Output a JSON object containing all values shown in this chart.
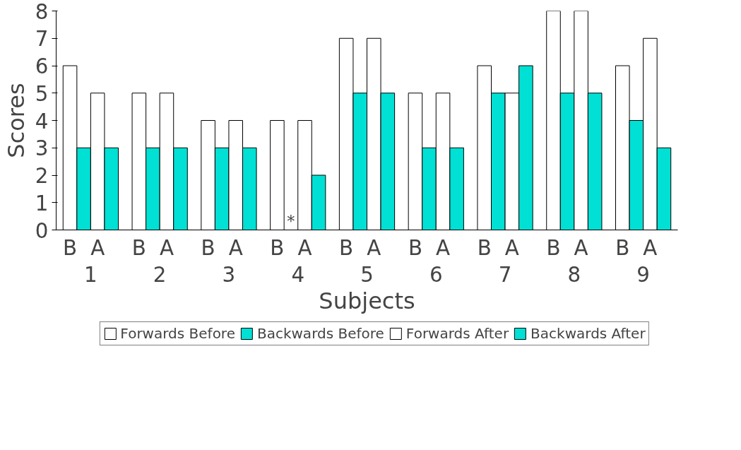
{
  "chart_data": {
    "type": "bar",
    "xlabel": "Subjects",
    "ylabel": "Scores",
    "categories": [
      "1",
      "2",
      "3",
      "4",
      "5",
      "6",
      "7",
      "8",
      "9"
    ],
    "series": [
      {
        "name": "Forwards Before",
        "color": "#ffffff",
        "values": [
          6,
          5,
          4,
          4,
          7,
          5,
          6,
          8,
          6
        ]
      },
      {
        "name": "Backwards Before",
        "color": "#00e0d4",
        "values": [
          3,
          3,
          3,
          0,
          5,
          3,
          5,
          5,
          4
        ]
      },
      {
        "name": "Forwards After",
        "color": "#ffffff",
        "values": [
          5,
          5,
          4,
          4,
          7,
          5,
          5,
          8,
          7
        ]
      },
      {
        "name": "Backwards After",
        "color": "#00e0d4",
        "values": [
          3,
          3,
          3,
          2,
          5,
          3,
          6,
          5,
          3
        ]
      }
    ],
    "ylim": [
      0,
      8
    ],
    "yticks": [
      0,
      1,
      2,
      3,
      4,
      5,
      6,
      7,
      8
    ],
    "grid": false,
    "legend": "bottom",
    "annotations": [
      {
        "text": "*",
        "x": "4",
        "y": 0
      },
      "B",
      "A",
      "B",
      "A",
      "B",
      "A",
      "B",
      "A",
      "B",
      "A",
      "B",
      "A",
      "B",
      "A",
      "B",
      "A",
      "B",
      "A"
    ]
  }
}
